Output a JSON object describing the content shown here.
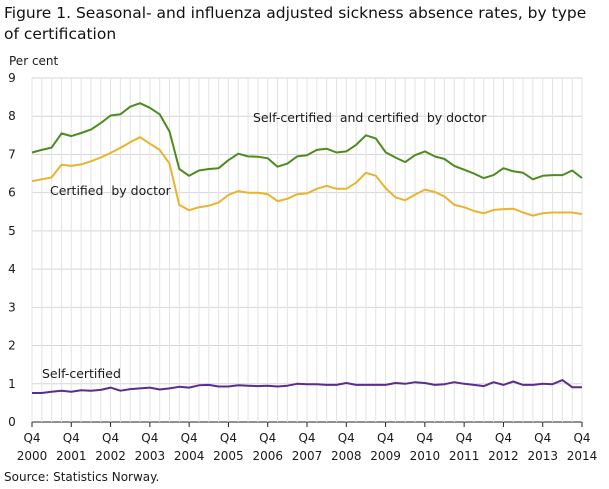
{
  "chart_data": {
    "type": "line",
    "title": "Figure 1. Seasonal- and influenza adjusted sickness absence rates, by type of certification",
    "ylabel": "Per cent",
    "xlabel": "",
    "ylim": [
      0,
      9
    ],
    "yticks": [
      "0",
      "1",
      "2",
      "3",
      "4",
      "5",
      "6",
      "7",
      "8",
      "9"
    ],
    "xticks": [
      {
        "q": "Q4",
        "year": "2000",
        "index": 0
      },
      {
        "q": "Q4",
        "year": "2001",
        "index": 4
      },
      {
        "q": "Q4",
        "year": "2002",
        "index": 8
      },
      {
        "q": "Q4",
        "year": "2003",
        "index": 12
      },
      {
        "q": "Q4",
        "year": "2004",
        "index": 16
      },
      {
        "q": "Q4",
        "year": "2005",
        "index": 20
      },
      {
        "q": "Q4",
        "year": "2006",
        "index": 24
      },
      {
        "q": "Q4",
        "year": "2007",
        "index": 28
      },
      {
        "q": "Q4",
        "year": "2008",
        "index": 32
      },
      {
        "q": "Q4",
        "year": "2009",
        "index": 36
      },
      {
        "q": "Q4",
        "year": "2010",
        "index": 40
      },
      {
        "q": "Q4",
        "year": "2011",
        "index": 44
      },
      {
        "q": "Q4",
        "year": "2012",
        "index": 48
      },
      {
        "q": "Q4",
        "year": "2013",
        "index": 52
      },
      {
        "q": "Q4",
        "year": "2014",
        "index": 56
      }
    ],
    "grid": true,
    "x": [
      "2000Q4",
      "2001Q1",
      "2001Q2",
      "2001Q3",
      "2001Q4",
      "2002Q1",
      "2002Q2",
      "2002Q3",
      "2002Q4",
      "2003Q1",
      "2003Q2",
      "2003Q3",
      "2003Q4",
      "2004Q1",
      "2004Q2",
      "2004Q3",
      "2004Q4",
      "2005Q1",
      "2005Q2",
      "2005Q3",
      "2005Q4",
      "2006Q1",
      "2006Q2",
      "2006Q3",
      "2006Q4",
      "2007Q1",
      "2007Q2",
      "2007Q3",
      "2007Q4",
      "2008Q1",
      "2008Q2",
      "2008Q3",
      "2008Q4",
      "2009Q1",
      "2009Q2",
      "2009Q3",
      "2009Q4",
      "2010Q1",
      "2010Q2",
      "2010Q3",
      "2010Q4",
      "2011Q1",
      "2011Q2",
      "2011Q3",
      "2011Q4",
      "2012Q1",
      "2012Q2",
      "2012Q3",
      "2012Q4",
      "2013Q1",
      "2013Q2",
      "2013Q3",
      "2013Q4",
      "2014Q1",
      "2014Q2",
      "2014Q3",
      "2014Q4"
    ],
    "series": [
      {
        "name": "Self-certified  and certified  by doctor",
        "color": "#4e8b1f",
        "values": [
          7.05,
          7.12,
          7.18,
          7.55,
          7.48,
          7.56,
          7.65,
          7.82,
          8.02,
          8.05,
          8.25,
          8.34,
          8.22,
          8.05,
          7.6,
          6.62,
          6.44,
          6.58,
          6.62,
          6.64,
          6.85,
          7.02,
          6.95,
          6.94,
          6.9,
          6.68,
          6.76,
          6.95,
          6.98,
          7.12,
          7.15,
          7.05,
          7.08,
          7.25,
          7.5,
          7.42,
          7.06,
          6.92,
          6.8,
          6.98,
          7.08,
          6.95,
          6.88,
          6.7,
          6.6,
          6.5,
          6.38,
          6.46,
          6.64,
          6.56,
          6.52,
          6.35,
          6.44,
          6.46,
          6.46,
          6.58,
          6.38
        ]
      },
      {
        "name": "Certified  by doctor",
        "color": "#e8b42c",
        "values": [
          6.3,
          6.35,
          6.4,
          6.73,
          6.7,
          6.74,
          6.82,
          6.92,
          7.04,
          7.17,
          7.32,
          7.45,
          7.28,
          7.12,
          6.76,
          5.68,
          5.54,
          5.62,
          5.66,
          5.74,
          5.94,
          6.04,
          6.0,
          6.0,
          5.96,
          5.78,
          5.84,
          5.96,
          5.98,
          6.1,
          6.18,
          6.1,
          6.1,
          6.26,
          6.52,
          6.44,
          6.12,
          5.88,
          5.8,
          5.95,
          6.08,
          6.02,
          5.9,
          5.68,
          5.62,
          5.52,
          5.46,
          5.55,
          5.57,
          5.58,
          5.48,
          5.4,
          5.46,
          5.48,
          5.48,
          5.48,
          5.44
        ]
      },
      {
        "name": "Self-certified",
        "color": "#5b2d8e",
        "values": [
          0.76,
          0.76,
          0.79,
          0.82,
          0.79,
          0.83,
          0.82,
          0.84,
          0.9,
          0.82,
          0.86,
          0.88,
          0.9,
          0.85,
          0.88,
          0.92,
          0.9,
          0.96,
          0.97,
          0.93,
          0.93,
          0.96,
          0.95,
          0.94,
          0.95,
          0.93,
          0.95,
          1.0,
          0.99,
          0.99,
          0.97,
          0.97,
          1.02,
          0.97,
          0.97,
          0.97,
          0.97,
          1.02,
          1.0,
          1.04,
          1.02,
          0.97,
          0.99,
          1.04,
          1.0,
          0.97,
          0.94,
          1.04,
          0.97,
          1.06,
          0.97,
          0.97,
          1.0,
          0.99,
          1.1,
          0.91,
          0.91
        ]
      }
    ],
    "annotations": [
      "Self-certified  and certified  by doctor",
      "Certified  by doctor",
      "Self-certified"
    ]
  },
  "source": "Source: Statistics Norway."
}
